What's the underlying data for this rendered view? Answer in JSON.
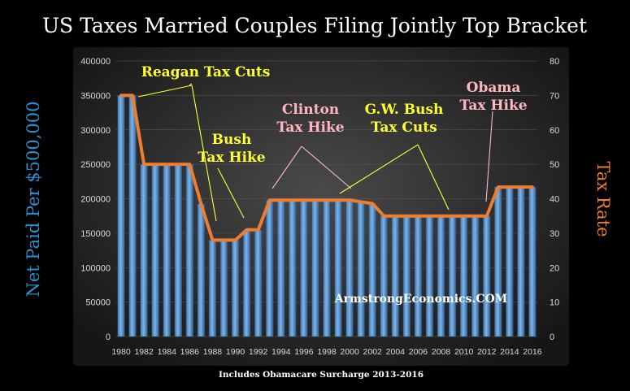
{
  "chart_data": {
    "type": "bar",
    "title": "US Taxes Married Couples Filing Jointly Top Bracket",
    "ylabel": "Net Paid Per $500,000",
    "y2label": "Tax Rate",
    "footnote": "Includes Obamacare Surcharge 2013-2016",
    "watermark": "ArmstrongEconomics.COM",
    "ylim": [
      0,
      400000
    ],
    "y2lim": [
      0,
      80
    ],
    "yticks": [
      "0",
      "50000",
      "100000",
      "150000",
      "200000",
      "250000",
      "300000",
      "350000",
      "400000"
    ],
    "y2ticks": [
      "0",
      "10",
      "20",
      "30",
      "40",
      "50",
      "60",
      "70",
      "80"
    ],
    "xtick_labels": [
      "1980",
      "1982",
      "1984",
      "1986",
      "1988",
      "1990",
      "1992",
      "1994",
      "1996",
      "1998",
      "2000",
      "2002",
      "2004",
      "2006",
      "2008",
      "2010",
      "2012",
      "2014",
      "2016"
    ],
    "categories": [
      "1980",
      "1981",
      "1982",
      "1983",
      "1984",
      "1985",
      "1986",
      "1987",
      "1988",
      "1989",
      "1990",
      "1991",
      "1992",
      "1993",
      "1994",
      "1995",
      "1996",
      "1997",
      "1998",
      "1999",
      "2000",
      "2001",
      "2002",
      "2003",
      "2004",
      "2005",
      "2006",
      "2007",
      "2008",
      "2009",
      "2010",
      "2011",
      "2012",
      "2013",
      "2014",
      "2015",
      "2016"
    ],
    "series": [
      {
        "axis": "left",
        "type": "bar",
        "color": "#5b9bd5",
        "values": [
          350000,
          350000,
          250000,
          250000,
          250000,
          250000,
          250000,
          192500,
          140000,
          140000,
          140000,
          155000,
          155000,
          198000,
          198000,
          198000,
          198000,
          198000,
          198000,
          198000,
          198000,
          195500,
          193000,
          175000,
          175000,
          175000,
          175000,
          175000,
          175000,
          175000,
          175000,
          175000,
          175000,
          217000,
          217000,
          217000,
          217000
        ]
      },
      {
        "axis": "right",
        "type": "line",
        "color": "#ed7d31",
        "values": [
          70,
          70,
          50,
          50,
          50,
          50,
          50,
          38.5,
          28,
          28,
          28,
          31,
          31,
          39.6,
          39.6,
          39.6,
          39.6,
          39.6,
          39.6,
          39.6,
          39.6,
          39.1,
          38.6,
          35,
          35,
          35,
          35,
          35,
          35,
          35,
          35,
          35,
          35,
          43.4,
          43.4,
          43.4,
          43.4
        ]
      }
    ],
    "annotations": [
      {
        "lines": [
          "Reagan Tax Cuts"
        ],
        "color": "#ffff33"
      },
      {
        "lines": [
          "Bush",
          "Tax Hike"
        ],
        "color": "#ffff33"
      },
      {
        "lines": [
          "Clinton",
          "Tax Hike"
        ],
        "color": "#ffb6c1"
      },
      {
        "lines": [
          "G.W. Bush",
          "Tax Cuts"
        ],
        "color": "#ffff33"
      },
      {
        "lines": [
          "Obama",
          "Tax Hike"
        ],
        "color": "#ffb6c1"
      }
    ],
    "colors": {
      "background": "#000000",
      "plot_center": "#4a4a4a",
      "plot_edge": "#1a1a1a",
      "left_axis_label": "#2f8fce",
      "right_axis_label": "#ed7d31",
      "tick_text": "#d9d9d9",
      "title": "#ffffff"
    }
  }
}
